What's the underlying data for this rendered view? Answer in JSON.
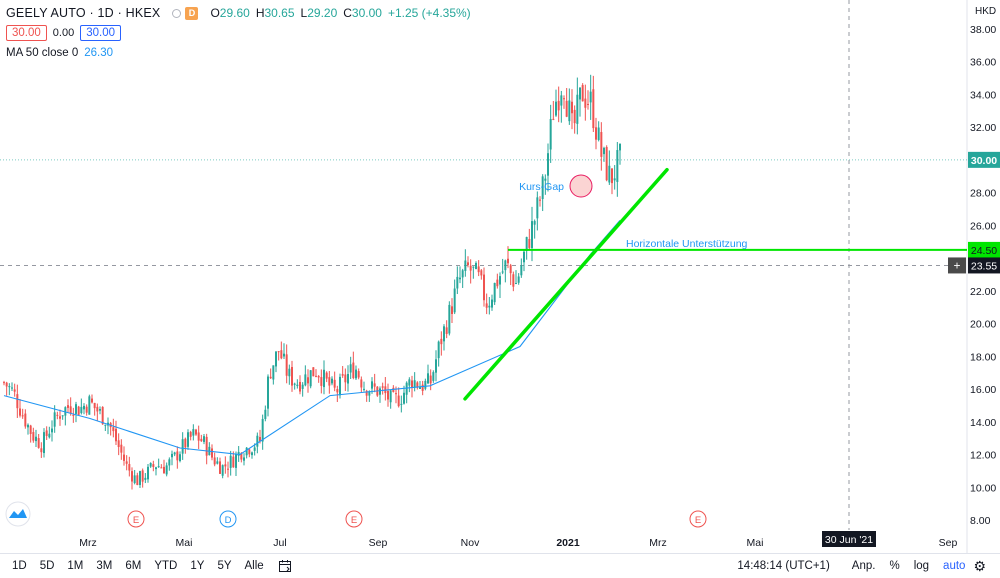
{
  "legend": {
    "symbol": "GEELY AUTO · 1D · HKEX",
    "open_label": "O",
    "open": "29.60",
    "high_label": "H",
    "high": "30.65",
    "low_label": "L",
    "low": "29.20",
    "close_label": "C",
    "close": "30.00",
    "change": "+1.25 (+4.35%)",
    "sell_price": "30.00",
    "spread": "0.00",
    "buy_price": "30.00",
    "ma_label": "MA 50 close 0",
    "ma_value": "26.30",
    "d_badge": "D"
  },
  "currency": "HKD",
  "price_labels": {
    "last": "30.00",
    "support": "24.50",
    "crosshair": "23.55",
    "crosshair_time": "30 Jun '21"
  },
  "annotations": {
    "gap": "Kurs-Gap",
    "support": "Horizontale Unterstützung"
  },
  "events": [
    {
      "label": "E",
      "x_label": "Apr"
    },
    {
      "label": "D",
      "x_label": "Jun"
    },
    {
      "label": "E",
      "x_label": "Aug"
    },
    {
      "label": "E",
      "x_label": "Mrz"
    }
  ],
  "toolbar": {
    "periods": [
      "1D",
      "5D",
      "1M",
      "3M",
      "6M",
      "YTD",
      "1Y",
      "5Y",
      "Alle"
    ],
    "time": "14:48:14 (UTC+1)",
    "adjust": "Anp.",
    "percent": "%",
    "log": "log",
    "auto": "auto"
  },
  "colors": {
    "up": "#26a69a",
    "down": "#ef5350",
    "ma": "#2196f3",
    "trend": "#00e600",
    "support_line": "#00e600"
  },
  "chart_data": {
    "type": "candlestick",
    "y_axis_ticks": [
      8,
      10,
      12,
      14,
      16,
      18,
      20,
      22,
      24,
      26,
      28,
      30,
      32,
      34,
      36,
      38
    ],
    "ylim": [
      7.5,
      39
    ],
    "x_tick_labels": [
      "Mrz",
      "Mai",
      "Jul",
      "Sep",
      "Nov",
      "2021",
      "Mrz",
      "Mai",
      "Sep"
    ],
    "grid": false,
    "series": [
      {
        "name": "GEELY AUTO",
        "close_path": [
          16.4,
          15.8,
          14.4,
          13.2,
          12.6,
          13.8,
          14.6,
          15.0,
          14.8,
          15.2,
          14.6,
          14.0,
          12.6,
          11.2,
          10.4,
          10.8,
          11.4,
          11.2,
          11.8,
          12.6,
          13.2,
          12.8,
          11.8,
          11.2,
          11.6,
          12.2,
          12.5,
          12.8,
          17.0,
          18.4,
          16.8,
          16.4,
          16.8,
          17.2,
          16.4,
          15.8,
          16.6,
          17.4,
          16.2,
          16.0,
          15.8,
          15.2,
          15.6,
          16.6,
          16.2,
          16.4,
          18.8,
          20.6,
          22.6,
          23.4,
          22.8,
          21.2,
          22.6,
          23.6,
          22.4,
          24.4,
          26.4,
          28.6,
          33.2,
          35.0,
          31.6,
          34.2,
          33.4,
          30.4,
          28.8,
          30.0
        ]
      },
      {
        "name": "MA 50 close 0",
        "values_at_ticks": [
          15.6,
          14.2,
          12.4,
          12.0,
          15.6,
          16.2,
          18.6,
          24.2,
          26.3
        ]
      }
    ],
    "annotations": {
      "support_level": 24.5,
      "trendline": {
        "from": 15.4,
        "to": 29.4
      },
      "gap_marker": 28.4
    }
  }
}
